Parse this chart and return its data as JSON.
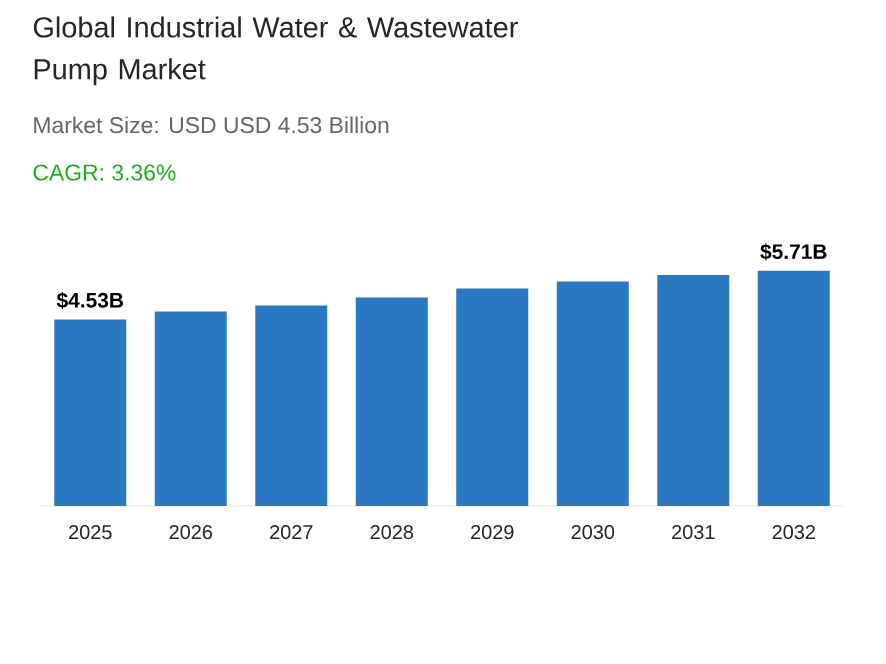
{
  "chart_data": {
    "type": "bar",
    "title": "Global Industrial Water & Wastewater Pump Market",
    "subtitle": "Market Size: USD USD 4.53 Billion",
    "annotations": [
      "CAGR: 3.36%"
    ],
    "categories": [
      "2025",
      "2026",
      "2027",
      "2028",
      "2029",
      "2030",
      "2031",
      "2032"
    ],
    "values": [
      4.53,
      4.72,
      4.87,
      5.06,
      5.28,
      5.45,
      5.61,
      5.71
    ],
    "value_labels": [
      "$4.53B",
      null,
      null,
      null,
      null,
      null,
      null,
      "$5.71B"
    ],
    "color": "#2b78c2"
  }
}
